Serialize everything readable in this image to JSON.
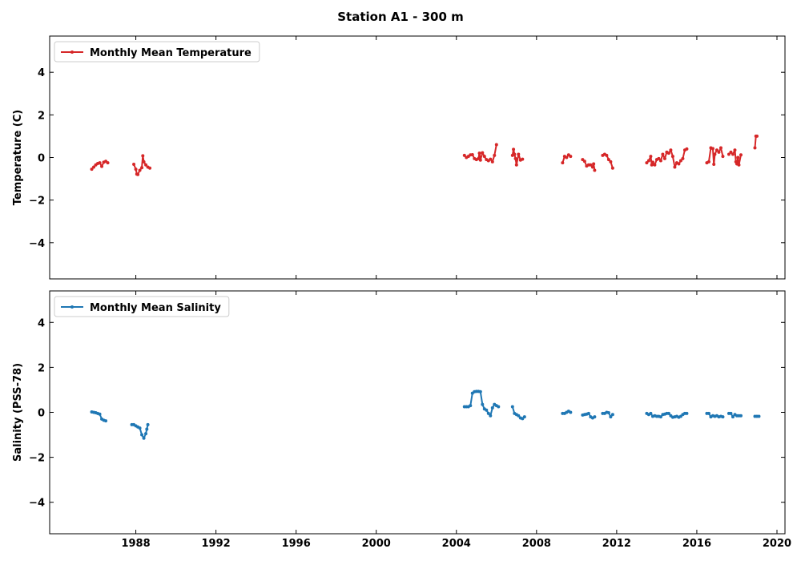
{
  "figure": {
    "suptitle": "Station A1 - 300 m"
  },
  "chart_data": [
    {
      "type": "line",
      "ylabel": "Temperature (C)",
      "xlabel": "",
      "xlim": [
        1983.7,
        2020.4
      ],
      "ylim": [
        -5.7,
        5.7
      ],
      "yticks": [
        -4,
        -2,
        0,
        2,
        4
      ],
      "xticks": [
        1988,
        1992,
        1996,
        2000,
        2004,
        2008,
        2012,
        2016,
        2020
      ],
      "show_xtick_labels": false,
      "legend_position": "upper left",
      "grid": false,
      "color": "#d62728",
      "series": [
        {
          "name": "Monthly Mean Temperature",
          "segments": [
            [
              [
                1985.8,
                -0.55
              ],
              [
                1985.9,
                -0.45
              ],
              [
                1986.0,
                -0.35
              ],
              [
                1986.1,
                -0.28
              ],
              [
                1986.2,
                -0.25
              ],
              [
                1986.3,
                -0.42
              ],
              [
                1986.4,
                -0.22
              ],
              [
                1986.5,
                -0.18
              ],
              [
                1986.6,
                -0.25
              ]
            ],
            [
              [
                1987.9,
                -0.32
              ],
              [
                1988.0,
                -0.55
              ],
              [
                1988.05,
                -0.78
              ],
              [
                1988.1,
                -0.8
              ],
              [
                1988.2,
                -0.6
              ],
              [
                1988.3,
                -0.48
              ],
              [
                1988.35,
                0.08
              ],
              [
                1988.4,
                -0.2
              ],
              [
                1988.5,
                -0.35
              ],
              [
                1988.6,
                -0.45
              ],
              [
                1988.7,
                -0.5
              ]
            ],
            [
              [
                2004.4,
                0.1
              ],
              [
                2004.5,
                0.0
              ],
              [
                2004.6,
                0.05
              ],
              [
                2004.7,
                0.12
              ],
              [
                2004.8,
                0.13
              ],
              [
                2004.9,
                -0.05
              ],
              [
                2005.0,
                -0.1
              ],
              [
                2005.1,
                -0.05
              ],
              [
                2005.15,
                0.2
              ],
              [
                2005.2,
                -0.12
              ],
              [
                2005.3,
                0.22
              ],
              [
                2005.4,
                0.05
              ],
              [
                2005.5,
                -0.1
              ],
              [
                2005.6,
                -0.15
              ],
              [
                2005.7,
                -0.08
              ],
              [
                2005.8,
                -0.2
              ],
              [
                2005.9,
                0.1
              ],
              [
                2006.0,
                0.6
              ]
            ],
            [
              [
                2006.8,
                0.1
              ],
              [
                2006.85,
                0.38
              ],
              [
                2006.9,
                0.15
              ],
              [
                2006.95,
                -0.05
              ],
              [
                2007.0,
                -0.35
              ],
              [
                2007.1,
                0.15
              ],
              [
                2007.2,
                -0.12
              ],
              [
                2007.3,
                -0.08
              ]
            ],
            [
              [
                2009.3,
                -0.25
              ],
              [
                2009.4,
                0.05
              ],
              [
                2009.5,
                0.0
              ],
              [
                2009.6,
                0.12
              ],
              [
                2009.7,
                0.05
              ]
            ],
            [
              [
                2010.3,
                -0.1
              ],
              [
                2010.4,
                -0.18
              ],
              [
                2010.5,
                -0.4
              ],
              [
                2010.6,
                -0.35
              ],
              [
                2010.7,
                -0.35
              ],
              [
                2010.8,
                -0.45
              ],
              [
                2010.85,
                -0.3
              ],
              [
                2010.9,
                -0.6
              ]
            ],
            [
              [
                2011.3,
                0.1
              ],
              [
                2011.4,
                0.15
              ],
              [
                2011.5,
                0.1
              ],
              [
                2011.6,
                -0.1
              ],
              [
                2011.7,
                -0.2
              ],
              [
                2011.8,
                -0.5
              ]
            ],
            [
              [
                2013.5,
                -0.25
              ],
              [
                2013.6,
                -0.15
              ],
              [
                2013.7,
                0.05
              ],
              [
                2013.75,
                -0.35
              ],
              [
                2013.8,
                -0.22
              ],
              [
                2013.9,
                -0.35
              ],
              [
                2014.0,
                -0.1
              ],
              [
                2014.1,
                -0.05
              ],
              [
                2014.2,
                -0.15
              ],
              [
                2014.3,
                0.15
              ],
              [
                2014.4,
                -0.05
              ],
              [
                2014.5,
                0.25
              ],
              [
                2014.6,
                0.2
              ],
              [
                2014.7,
                0.35
              ],
              [
                2014.8,
                0.05
              ],
              [
                2014.9,
                -0.45
              ],
              [
                2015.0,
                -0.25
              ],
              [
                2015.1,
                -0.3
              ],
              [
                2015.2,
                -0.15
              ],
              [
                2015.3,
                -0.05
              ],
              [
                2015.4,
                0.35
              ],
              [
                2015.5,
                0.4
              ]
            ],
            [
              [
                2016.5,
                -0.25
              ],
              [
                2016.6,
                -0.2
              ],
              [
                2016.7,
                0.45
              ],
              [
                2016.8,
                0.42
              ],
              [
                2016.85,
                -0.32
              ],
              [
                2016.9,
                0.15
              ],
              [
                2017.0,
                0.35
              ],
              [
                2017.1,
                0.25
              ],
              [
                2017.2,
                0.45
              ],
              [
                2017.3,
                0.05
              ]
            ],
            [
              [
                2017.6,
                0.15
              ],
              [
                2017.7,
                0.25
              ],
              [
                2017.8,
                0.15
              ],
              [
                2017.9,
                0.35
              ],
              [
                2017.95,
                -0.2
              ],
              [
                2018.0,
                -0.3
              ],
              [
                2018.05,
                0.0
              ],
              [
                2018.1,
                -0.35
              ],
              [
                2018.2,
                0.12
              ]
            ],
            [
              [
                2018.9,
                0.45
              ],
              [
                2018.95,
                1.0
              ],
              [
                2019.0,
                1.0
              ]
            ]
          ]
        }
      ]
    },
    {
      "type": "line",
      "ylabel": "Salinity (PSS-78)",
      "xlabel": "",
      "xlim": [
        1983.7,
        2020.4
      ],
      "ylim": [
        -5.4,
        5.4
      ],
      "yticks": [
        -4,
        -2,
        0,
        2,
        4
      ],
      "xticks": [
        1988,
        1992,
        1996,
        2000,
        2004,
        2008,
        2012,
        2016,
        2020
      ],
      "xtick_labels": [
        "1988",
        "1992",
        "1996",
        "2000",
        "2004",
        "2008",
        "2012",
        "2016",
        "2020"
      ],
      "show_xtick_labels": true,
      "legend_position": "upper left",
      "grid": false,
      "color": "#1f77b4",
      "series": [
        {
          "name": "Monthly Mean Salinity",
          "segments": [
            [
              [
                1985.8,
                0.02
              ],
              [
                1985.9,
                0.0
              ],
              [
                1986.0,
                -0.02
              ],
              [
                1986.1,
                -0.05
              ],
              [
                1986.2,
                -0.08
              ],
              [
                1986.3,
                -0.3
              ],
              [
                1986.4,
                -0.35
              ],
              [
                1986.5,
                -0.38
              ]
            ],
            [
              [
                1987.8,
                -0.55
              ],
              [
                1987.9,
                -0.55
              ],
              [
                1988.0,
                -0.6
              ],
              [
                1988.1,
                -0.65
              ],
              [
                1988.2,
                -0.7
              ],
              [
                1988.3,
                -1.0
              ],
              [
                1988.4,
                -1.15
              ],
              [
                1988.5,
                -0.95
              ],
              [
                1988.55,
                -0.75
              ],
              [
                1988.6,
                -0.55
              ]
            ],
            [
              [
                2004.4,
                0.25
              ],
              [
                2004.5,
                0.25
              ],
              [
                2004.6,
                0.25
              ],
              [
                2004.7,
                0.3
              ],
              [
                2004.8,
                0.85
              ],
              [
                2004.9,
                0.92
              ],
              [
                2005.0,
                0.93
              ],
              [
                2005.1,
                0.93
              ],
              [
                2005.2,
                0.92
              ],
              [
                2005.3,
                0.35
              ],
              [
                2005.4,
                0.15
              ],
              [
                2005.5,
                0.1
              ],
              [
                2005.6,
                -0.05
              ],
              [
                2005.7,
                -0.15
              ],
              [
                2005.8,
                0.2
              ],
              [
                2005.9,
                0.35
              ],
              [
                2006.0,
                0.3
              ],
              [
                2006.1,
                0.25
              ]
            ],
            [
              [
                2006.8,
                0.25
              ],
              [
                2006.9,
                -0.05
              ],
              [
                2007.0,
                -0.1
              ],
              [
                2007.1,
                -0.15
              ],
              [
                2007.2,
                -0.25
              ],
              [
                2007.3,
                -0.28
              ],
              [
                2007.4,
                -0.2
              ]
            ],
            [
              [
                2009.3,
                -0.05
              ],
              [
                2009.4,
                -0.05
              ],
              [
                2009.5,
                0.0
              ],
              [
                2009.6,
                0.05
              ],
              [
                2009.7,
                0.0
              ]
            ],
            [
              [
                2010.3,
                -0.12
              ],
              [
                2010.4,
                -0.1
              ],
              [
                2010.5,
                -0.08
              ],
              [
                2010.6,
                -0.05
              ],
              [
                2010.7,
                -0.2
              ],
              [
                2010.8,
                -0.25
              ],
              [
                2010.9,
                -0.2
              ]
            ],
            [
              [
                2011.3,
                -0.05
              ],
              [
                2011.4,
                -0.05
              ],
              [
                2011.5,
                0.0
              ],
              [
                2011.6,
                -0.02
              ],
              [
                2011.7,
                -0.2
              ],
              [
                2011.8,
                -0.1
              ]
            ],
            [
              [
                2013.5,
                -0.05
              ],
              [
                2013.6,
                -0.1
              ],
              [
                2013.7,
                -0.05
              ],
              [
                2013.8,
                -0.18
              ],
              [
                2013.9,
                -0.15
              ],
              [
                2014.0,
                -0.18
              ],
              [
                2014.1,
                -0.18
              ],
              [
                2014.2,
                -0.2
              ],
              [
                2014.3,
                -0.1
              ],
              [
                2014.4,
                -0.08
              ],
              [
                2014.5,
                -0.05
              ],
              [
                2014.6,
                -0.05
              ],
              [
                2014.7,
                -0.15
              ],
              [
                2014.8,
                -0.22
              ],
              [
                2014.9,
                -0.2
              ],
              [
                2015.0,
                -0.18
              ],
              [
                2015.1,
                -0.22
              ],
              [
                2015.2,
                -0.18
              ],
              [
                2015.3,
                -0.1
              ],
              [
                2015.4,
                -0.05
              ],
              [
                2015.5,
                -0.05
              ]
            ],
            [
              [
                2016.5,
                -0.05
              ],
              [
                2016.6,
                -0.05
              ],
              [
                2016.7,
                -0.2
              ],
              [
                2016.8,
                -0.15
              ],
              [
                2016.9,
                -0.18
              ],
              [
                2017.0,
                -0.15
              ],
              [
                2017.1,
                -0.2
              ],
              [
                2017.2,
                -0.18
              ],
              [
                2017.3,
                -0.2
              ]
            ],
            [
              [
                2017.6,
                -0.05
              ],
              [
                2017.7,
                -0.05
              ],
              [
                2017.8,
                -0.2
              ],
              [
                2017.9,
                -0.1
              ],
              [
                2018.0,
                -0.15
              ],
              [
                2018.1,
                -0.15
              ],
              [
                2018.2,
                -0.15
              ]
            ],
            [
              [
                2018.9,
                -0.18
              ],
              [
                2019.0,
                -0.18
              ],
              [
                2019.1,
                -0.18
              ]
            ]
          ]
        }
      ]
    }
  ]
}
